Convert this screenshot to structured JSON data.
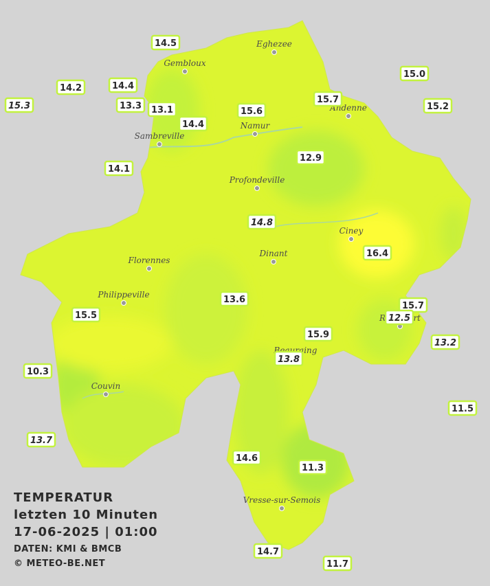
{
  "title": {
    "lines": [
      "TEMPERATUR",
      "letzten 10 Minuten",
      "17-06-2025  |  01:00"
    ]
  },
  "credits": [
    "DATEN: KMI & BMCB",
    "© METEO-BE.NET"
  ],
  "cities": [
    "Eghezee",
    "Gembloux",
    "Andenne",
    "Namur",
    "Sambreville",
    "Profondeville",
    "Ciney",
    "Dinant",
    "Florennes",
    "Philippeville",
    "Beauraing",
    "Rochefort",
    "Couvin",
    "Vresse-sur-Semois"
  ],
  "stations": [
    {
      "value": "14.5",
      "italic": false
    },
    {
      "value": "14.2",
      "italic": false
    },
    {
      "value": "14.4",
      "italic": false
    },
    {
      "value": "15.3",
      "italic": true
    },
    {
      "value": "13.3",
      "italic": false
    },
    {
      "value": "13.1",
      "italic": false
    },
    {
      "value": "14.4",
      "italic": false
    },
    {
      "value": "15.6",
      "italic": false
    },
    {
      "value": "15.7",
      "italic": false
    },
    {
      "value": "15.0",
      "italic": false
    },
    {
      "value": "15.2",
      "italic": false
    },
    {
      "value": "14.1",
      "italic": false
    },
    {
      "value": "12.9",
      "italic": false
    },
    {
      "value": "14.8",
      "italic": true
    },
    {
      "value": "16.4",
      "italic": false
    },
    {
      "value": "13.6",
      "italic": false
    },
    {
      "value": "15.7",
      "italic": false
    },
    {
      "value": "12.5",
      "italic": true
    },
    {
      "value": "15.5",
      "italic": false
    },
    {
      "value": "15.9",
      "italic": false
    },
    {
      "value": "13.2",
      "italic": true
    },
    {
      "value": "13.8",
      "italic": true
    },
    {
      "value": "10.3",
      "italic": false
    },
    {
      "value": "11.5",
      "italic": false
    },
    {
      "value": "13.7",
      "italic": true
    },
    {
      "value": "14.6",
      "italic": false
    },
    {
      "value": "11.3",
      "italic": false
    },
    {
      "value": "14.7",
      "italic": false
    },
    {
      "value": "11.7",
      "italic": false
    }
  ]
}
